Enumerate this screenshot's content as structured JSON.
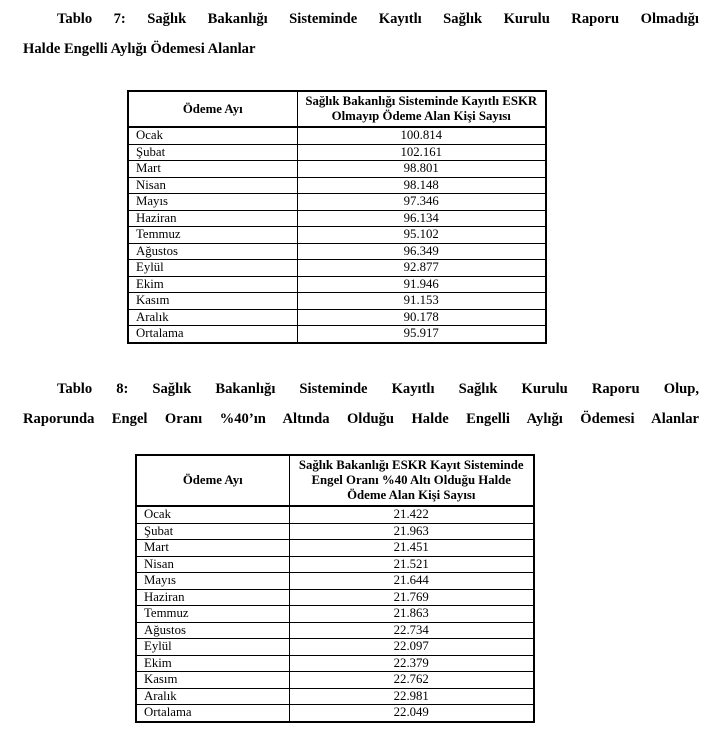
{
  "document": {
    "tables": [
      {
        "id": "tablo7",
        "title_line1": "Tablo 7: Sağlık Bakanlığı Sisteminde Kayıtlı Sağlık Kurulu Raporu Olmadığı",
        "title_line2": "Halde Engelli Aylığı Ödemesi Alanlar",
        "col_month": "Ödeme Ayı",
        "col_value": "Sağlık Bakanlığı Sisteminde Kayıtlı ESKR Olmayıp Ödeme Alan Kişi Sayısı",
        "rows": [
          {
            "month": "Ocak",
            "value": "100.814"
          },
          {
            "month": "Şubat",
            "value": "102.161"
          },
          {
            "month": "Mart",
            "value": "98.801"
          },
          {
            "month": "Nisan",
            "value": "98.148"
          },
          {
            "month": "Mayıs",
            "value": "97.346"
          },
          {
            "month": "Haziran",
            "value": "96.134"
          },
          {
            "month": "Temmuz",
            "value": "95.102"
          },
          {
            "month": "Ağustos",
            "value": "96.349"
          },
          {
            "month": "Eylül",
            "value": "92.877"
          },
          {
            "month": "Ekim",
            "value": "91.946"
          },
          {
            "month": "Kasım",
            "value": "91.153"
          },
          {
            "month": "Aralık",
            "value": "90.178"
          },
          {
            "month": "Ortalama",
            "value": "95.917"
          }
        ]
      },
      {
        "id": "tablo8",
        "title_line1": "Tablo 8: Sağlık Bakanlığı Sisteminde Kayıtlı Sağlık Kurulu Raporu Olup,",
        "title_line2": "Raporunda Engel Oranı %40’ın Altında Olduğu Halde Engelli Aylığı Ödemesi Alanlar",
        "col_month": "Ödeme Ayı",
        "col_value": "Sağlık Bakanlığı ESKR Kayıt Sisteminde Engel Oranı %40 Altı Olduğu Halde Ödeme Alan Kişi Sayısı",
        "rows": [
          {
            "month": "Ocak",
            "value": "21.422"
          },
          {
            "month": "Şubat",
            "value": "21.963"
          },
          {
            "month": "Mart",
            "value": "21.451"
          },
          {
            "month": "Nisan",
            "value": "21.521"
          },
          {
            "month": "Mayıs",
            "value": "21.644"
          },
          {
            "month": "Haziran",
            "value": "21.769"
          },
          {
            "month": "Temmuz",
            "value": "21.863"
          },
          {
            "month": "Ağustos",
            "value": "22.734"
          },
          {
            "month": "Eylül",
            "value": "22.097"
          },
          {
            "month": "Ekim",
            "value": "22.379"
          },
          {
            "month": "Kasım",
            "value": "22.762"
          },
          {
            "month": "Aralık",
            "value": "22.981"
          },
          {
            "month": "Ortalama",
            "value": "22.049"
          }
        ]
      }
    ]
  }
}
